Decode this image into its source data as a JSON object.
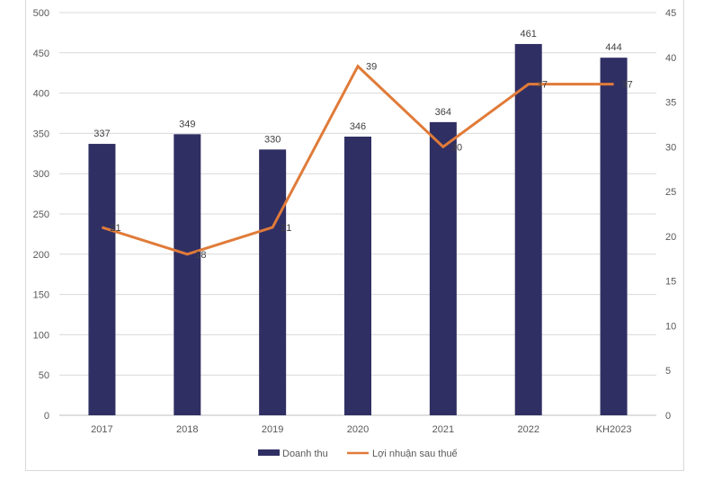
{
  "chart_data": {
    "type": "bar",
    "categories": [
      "2017",
      "2018",
      "2019",
      "2020",
      "2021",
      "2022",
      "KH2023"
    ],
    "series": [
      {
        "name": "Doanh thu",
        "type": "bar",
        "axis": "left",
        "color": "#302f64",
        "values": [
          337,
          349,
          330,
          346,
          364,
          461,
          444
        ]
      },
      {
        "name": "Lợi nhuận sau thuế",
        "type": "line",
        "axis": "right",
        "color": "#e07b39",
        "values": [
          21,
          18,
          21,
          39,
          30,
          37,
          37
        ]
      }
    ],
    "ylim_left": [
      0,
      500
    ],
    "yticks_left": [
      "0",
      "50",
      "100",
      "150",
      "200",
      "250",
      "300",
      "350",
      "400",
      "450",
      "500"
    ],
    "ylim_right": [
      0,
      45
    ],
    "yticks_right": [
      "0",
      "5",
      "10",
      "15",
      "20",
      "25",
      "30",
      "35",
      "40",
      "45"
    ],
    "grid": true,
    "legend": "bottom"
  }
}
